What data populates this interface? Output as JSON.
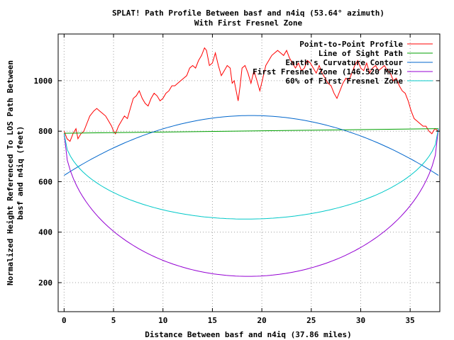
{
  "chart_data": {
    "type": "line",
    "title": "SPLAT! Path Profile Between basf and n4iq (53.64° azimuth)",
    "subtitle": "With First Fresnel Zone",
    "xlabel": "Distance Between basf and n4iq (37.86 miles)",
    "ylabel_line1": "Normalized Height Referenced To LOS Path Between",
    "ylabel_line2": "basf and n4iq (feet)",
    "xlim": [
      -0.6,
      38
    ],
    "ylim": [
      85,
      1185
    ],
    "x_ticks": [
      0,
      5,
      10,
      15,
      20,
      25,
      30,
      35
    ],
    "y_ticks": [
      200,
      400,
      600,
      800,
      1000
    ],
    "grid": true,
    "legend_position": "top-right",
    "series": [
      {
        "name": "Point-to-Point Profile",
        "color": "#ff0000",
        "points": [
          [
            0,
            800
          ],
          [
            0.3,
            770
          ],
          [
            0.6,
            760
          ],
          [
            0.9,
            790
          ],
          [
            1.2,
            810
          ],
          [
            1.4,
            770
          ],
          [
            1.7,
            790
          ],
          [
            2.0,
            800
          ],
          [
            2.3,
            830
          ],
          [
            2.6,
            860
          ],
          [
            3.0,
            880
          ],
          [
            3.3,
            890
          ],
          [
            3.6,
            880
          ],
          [
            3.9,
            870
          ],
          [
            4.2,
            860
          ],
          [
            4.5,
            840
          ],
          [
            4.8,
            820
          ],
          [
            5.0,
            800
          ],
          [
            5.2,
            790
          ],
          [
            5.5,
            820
          ],
          [
            5.8,
            840
          ],
          [
            6.1,
            860
          ],
          [
            6.4,
            850
          ],
          [
            6.7,
            890
          ],
          [
            7.0,
            930
          ],
          [
            7.3,
            940
          ],
          [
            7.6,
            960
          ],
          [
            7.9,
            930
          ],
          [
            8.2,
            910
          ],
          [
            8.5,
            900
          ],
          [
            8.8,
            930
          ],
          [
            9.1,
            950
          ],
          [
            9.4,
            940
          ],
          [
            9.7,
            920
          ],
          [
            10.0,
            930
          ],
          [
            10.3,
            950
          ],
          [
            10.6,
            960
          ],
          [
            10.9,
            980
          ],
          [
            11.2,
            980
          ],
          [
            11.5,
            990
          ],
          [
            11.8,
            1000
          ],
          [
            12.1,
            1010
          ],
          [
            12.4,
            1020
          ],
          [
            12.7,
            1050
          ],
          [
            13.0,
            1060
          ],
          [
            13.3,
            1050
          ],
          [
            13.6,
            1080
          ],
          [
            13.9,
            1100
          ],
          [
            14.2,
            1130
          ],
          [
            14.4,
            1120
          ],
          [
            14.7,
            1060
          ],
          [
            15.0,
            1070
          ],
          [
            15.3,
            1110
          ],
          [
            15.6,
            1060
          ],
          [
            15.9,
            1020
          ],
          [
            16.2,
            1040
          ],
          [
            16.5,
            1060
          ],
          [
            16.8,
            1050
          ],
          [
            17.0,
            990
          ],
          [
            17.2,
            1000
          ],
          [
            17.4,
            960
          ],
          [
            17.6,
            920
          ],
          [
            17.8,
            980
          ],
          [
            18.0,
            1050
          ],
          [
            18.3,
            1060
          ],
          [
            18.6,
            1030
          ],
          [
            18.9,
            990
          ],
          [
            19.2,
            1040
          ],
          [
            19.5,
            1000
          ],
          [
            19.8,
            960
          ],
          [
            20.1,
            1010
          ],
          [
            20.4,
            1060
          ],
          [
            20.7,
            1080
          ],
          [
            21.0,
            1100
          ],
          [
            21.3,
            1110
          ],
          [
            21.6,
            1120
          ],
          [
            21.9,
            1110
          ],
          [
            22.2,
            1100
          ],
          [
            22.5,
            1120
          ],
          [
            22.8,
            1090
          ],
          [
            23.1,
            1070
          ],
          [
            23.4,
            1050
          ],
          [
            23.7,
            1070
          ],
          [
            24.0,
            1040
          ],
          [
            24.3,
            1050
          ],
          [
            24.6,
            1080
          ],
          [
            24.9,
            1070
          ],
          [
            25.2,
            1050
          ],
          [
            25.5,
            1030
          ],
          [
            25.8,
            1060
          ],
          [
            26.1,
            1030
          ],
          [
            26.4,
            1010
          ],
          [
            26.7,
            990
          ],
          [
            27.0,
            980
          ],
          [
            27.3,
            950
          ],
          [
            27.6,
            930
          ],
          [
            27.9,
            960
          ],
          [
            28.2,
            990
          ],
          [
            28.5,
            1010
          ],
          [
            28.8,
            1000
          ],
          [
            29.1,
            1030
          ],
          [
            29.4,
            1060
          ],
          [
            29.7,
            1080
          ],
          [
            30.0,
            1050
          ],
          [
            30.3,
            1040
          ],
          [
            30.6,
            1070
          ],
          [
            30.9,
            1030
          ],
          [
            31.2,
            1050
          ],
          [
            31.5,
            1060
          ],
          [
            31.8,
            1040
          ],
          [
            32.1,
            1050
          ],
          [
            32.4,
            1060
          ],
          [
            32.7,
            1040
          ],
          [
            33.0,
            1030
          ],
          [
            33.3,
            1000
          ],
          [
            33.6,
            1010
          ],
          [
            33.9,
            980
          ],
          [
            34.2,
            960
          ],
          [
            34.5,
            950
          ],
          [
            34.8,
            920
          ],
          [
            35.1,
            880
          ],
          [
            35.4,
            850
          ],
          [
            35.7,
            840
          ],
          [
            36.0,
            830
          ],
          [
            36.3,
            820
          ],
          [
            36.6,
            820
          ],
          [
            36.9,
            800
          ],
          [
            37.2,
            790
          ],
          [
            37.5,
            810
          ],
          [
            37.86,
            800
          ]
        ]
      },
      {
        "name": "Line of Sight Path",
        "color": "#00a000",
        "points": [
          [
            0,
            792
          ],
          [
            37.86,
            810
          ]
        ]
      },
      {
        "name": "Earth's Curvature Contour",
        "color": "#0066cc",
        "curve": "parabola",
        "endpoints": [
          [
            0,
            625
          ],
          [
            37.86,
            625
          ]
        ],
        "peak": [
          18.93,
          862
        ]
      },
      {
        "name": "First Fresnel Zone (146.520 MHz)",
        "color": "#9400d3",
        "curve": "ellipse",
        "endpoints": [
          [
            0,
            790
          ],
          [
            37.86,
            810
          ]
        ],
        "trough": [
          18.93,
          225
        ]
      },
      {
        "name": "60% of First Fresnel Zone",
        "color": "#00c8c8",
        "curve": "ellipse",
        "endpoints": [
          [
            0,
            790
          ],
          [
            37.86,
            810
          ]
        ],
        "trough": [
          18.93,
          452
        ]
      }
    ]
  }
}
